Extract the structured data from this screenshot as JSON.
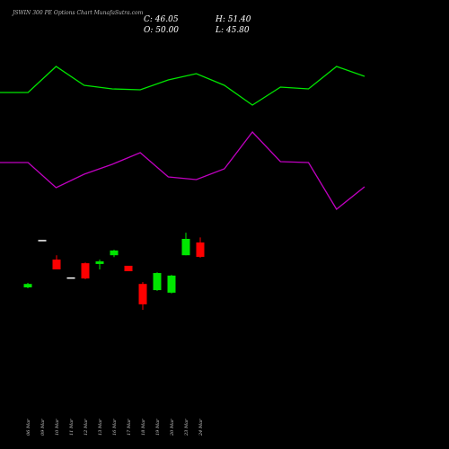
{
  "chart_data": [
    {
      "type": "line",
      "series": [
        {
          "color": "#00e600",
          "values": [
            79.4,
            79.4,
            85.2,
            81,
            80.2,
            80,
            82.2,
            83.6,
            81,
            76.6,
            80.6,
            80.2,
            85.2,
            83
          ]
        },
        {
          "color": "#c000c0",
          "values": [
            63.8,
            63.8,
            58.2,
            61.2,
            63.4,
            66,
            60.6,
            60,
            62.4,
            70.6,
            64,
            63.8,
            53.4,
            58.4
          ]
        }
      ],
      "ylim": [
        0,
        100
      ]
    },
    {
      "type": "candlestick",
      "title": "JSWIN 300 PE Options Chart MunafaSutra.com",
      "ohlc_labels": [
        "C: 46.05",
        "H: 51.40",
        "O: 50.00",
        "L: 45.80"
      ],
      "categories": [
        "06 Mar",
        "09 Mar",
        "10 Mar",
        "11 Mar",
        "12 Mar",
        "13 Mar",
        "16 Mar",
        "17 Mar",
        "18 Mar",
        "19 Mar",
        "20 Mar",
        "23 Mar",
        "24 Mar"
      ],
      "open": [
        37.65,
        50.7,
        45.3,
        40.4,
        44.3,
        44.1,
        46.5,
        43.6,
        38.6,
        36.9,
        36.2,
        46.5,
        50.0
      ],
      "close": [
        38.6,
        50.7,
        42.6,
        40.4,
        40.1,
        44.8,
        47.8,
        42.1,
        33.0,
        41.6,
        40.9,
        51.0,
        46.05
      ],
      "high": [
        38.9,
        50.7,
        46.5,
        40.4,
        44.5,
        45.3,
        48.0,
        43.6,
        39.1,
        41.8,
        41.1,
        52.7,
        51.4
      ],
      "low": [
        37.4,
        50.7,
        42.6,
        40.4,
        39.9,
        42.6,
        46.0,
        42.1,
        31.5,
        36.7,
        36.0,
        46.5,
        45.8
      ],
      "up_color": "#00e600",
      "down_color": "#ff0000",
      "flat_color": "#ffffff",
      "ylim": [
        -6.8,
        116.7
      ]
    }
  ]
}
